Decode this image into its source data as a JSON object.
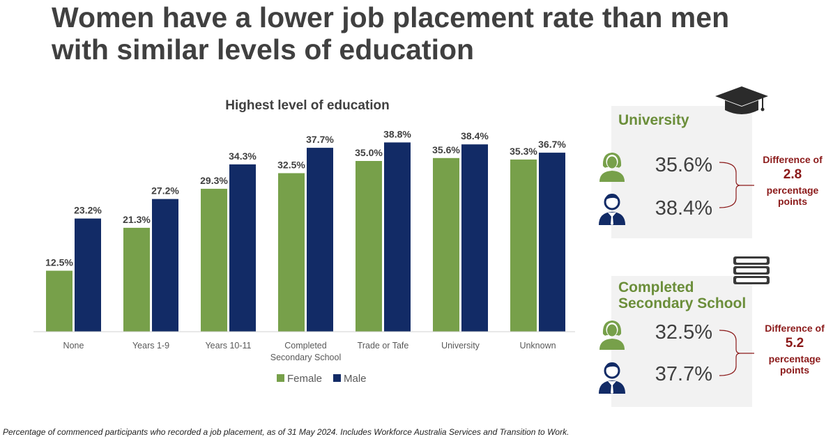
{
  "title": "Women have a lower job placement rate than men with similar levels of education",
  "colors": {
    "female": "#77a04a",
    "male": "#122b66",
    "accent": "#8b1a1a",
    "panel_title": "#6b8e3a"
  },
  "chart_data": {
    "type": "bar",
    "title": "Highest level of education",
    "categories": [
      "None",
      "Years 1-9",
      "Years 10-11",
      "Completed Secondary School",
      "Trade or Tafe",
      "University",
      "Unknown"
    ],
    "series": [
      {
        "name": "Female",
        "values": [
          12.5,
          21.3,
          29.3,
          32.5,
          35.0,
          35.6,
          35.3
        ]
      },
      {
        "name": "Male",
        "values": [
          23.2,
          27.2,
          34.3,
          37.7,
          38.8,
          38.4,
          36.7
        ]
      }
    ],
    "value_labels": {
      "Female": [
        "12.5%",
        "21.3%",
        "29.3%",
        "32.5%",
        "35.0%",
        "35.6%",
        "35.3%"
      ],
      "Male": [
        "23.2%",
        "27.2%",
        "34.3%",
        "37.7%",
        "38.8%",
        "38.4%",
        "36.7%"
      ]
    },
    "ylim": [
      0,
      40
    ],
    "legend": "bottom",
    "grid": false
  },
  "panels": {
    "university": {
      "title": "University",
      "icon": "graduation-cap-icon",
      "female_pct": "35.6%",
      "male_pct": "38.4%",
      "diff_line1": "Difference of",
      "diff_value": "2.8",
      "diff_line3a": "percentage",
      "diff_line3b": "points"
    },
    "secondary": {
      "title_line1": "Completed",
      "title_line2": "Secondary School",
      "icon": "books-icon",
      "female_pct": "32.5%",
      "male_pct": "37.7%",
      "diff_line1": "Difference of",
      "diff_value": "5.2",
      "diff_line3a": "percentage",
      "diff_line3b": "points"
    }
  },
  "footnote": "Percentage of commenced participants who recorded a job placement, as of 31 May 2024. Includes Workforce Australia Services and Transition to Work."
}
